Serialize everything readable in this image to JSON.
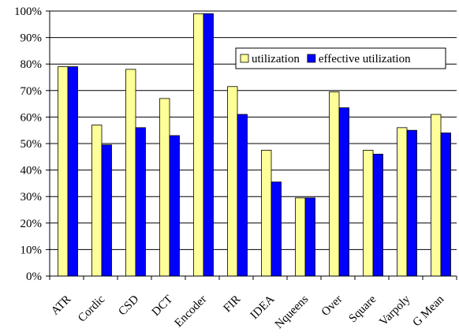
{
  "chart_data": {
    "type": "bar",
    "title": "",
    "xlabel": "",
    "ylabel": "",
    "ylim": [
      0,
      100
    ],
    "yticks": [
      "0%",
      "10%",
      "20%",
      "30%",
      "40%",
      "50%",
      "60%",
      "70%",
      "80%",
      "90%",
      "100%"
    ],
    "grid": "horizontal major gridlines",
    "legend_position": "top-right",
    "categories": [
      "ATR",
      "Cordic",
      "CSD",
      "DCT",
      "Encoder",
      "FIR",
      "IDEA",
      "Nqueens",
      "Over",
      "Square",
      "Varpoly",
      "G Mean"
    ],
    "series": [
      {
        "name": "utilization",
        "color": "#FFFF99",
        "values": [
          79,
          57,
          78,
          67,
          99,
          71.5,
          47.5,
          29.5,
          69.5,
          47.5,
          56,
          61
        ]
      },
      {
        "name": "effective utilization",
        "color": "#0000FF",
        "values": [
          79,
          49.5,
          56,
          53,
          99,
          61,
          35.5,
          29.5,
          63.5,
          46,
          55,
          54
        ]
      }
    ]
  }
}
